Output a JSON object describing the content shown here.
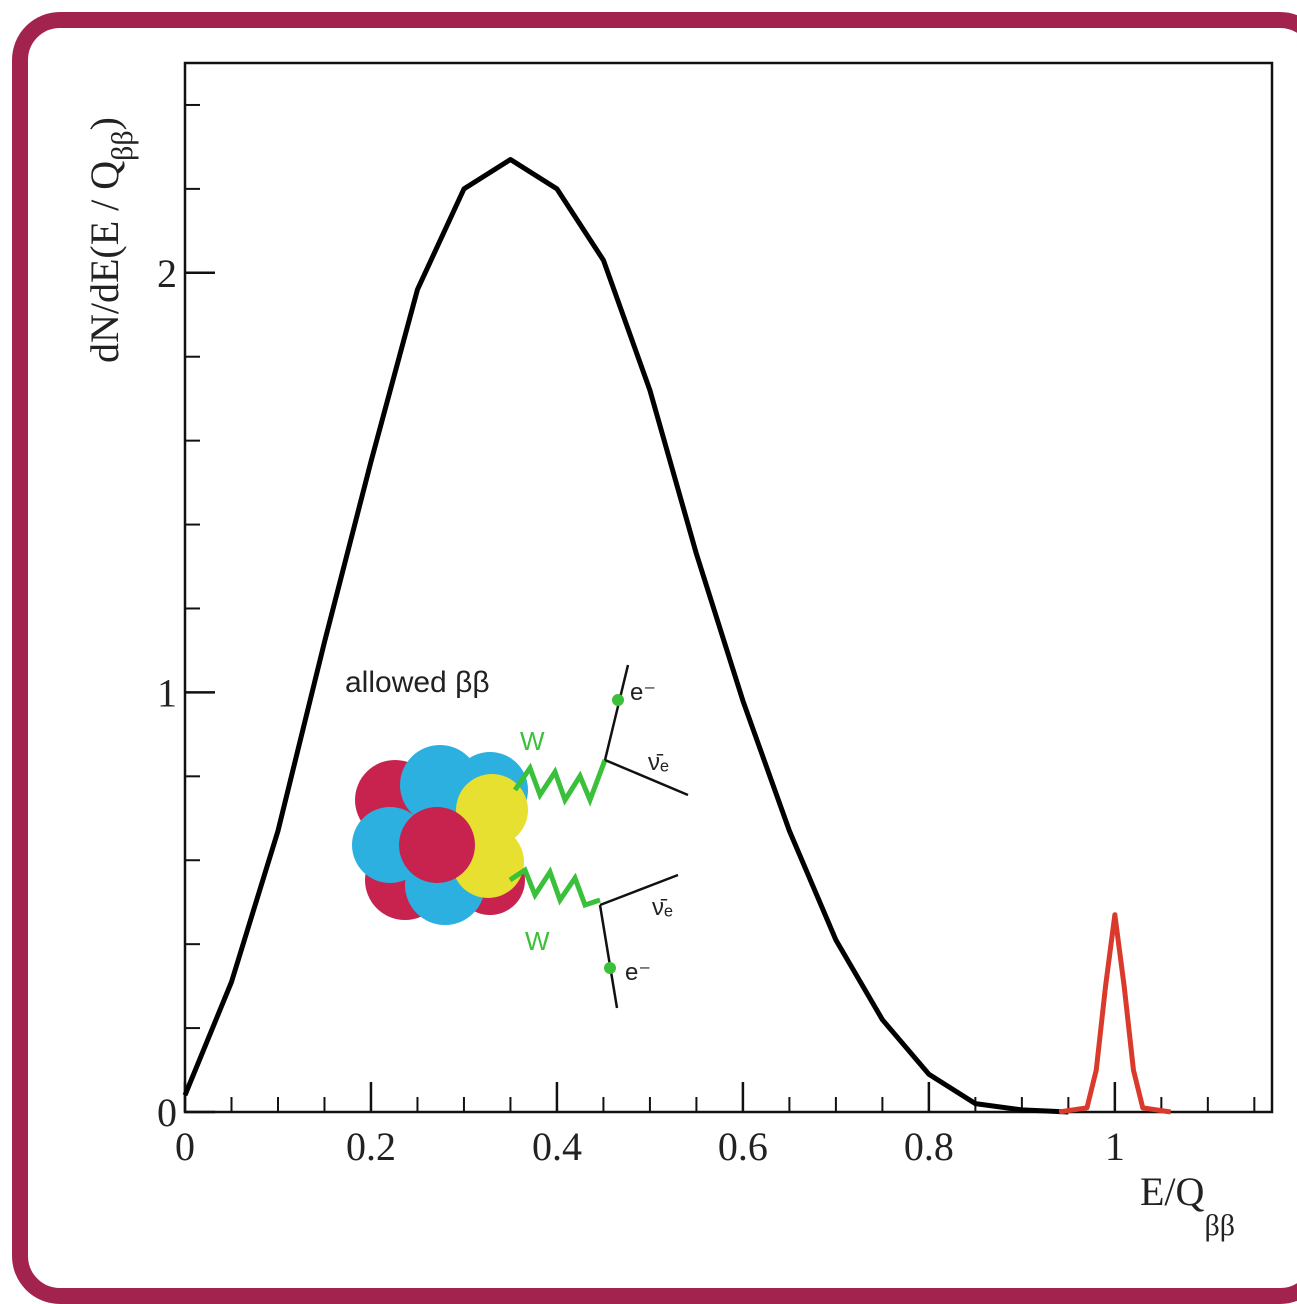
{
  "chart_data": {
    "type": "line",
    "ylabel": [
      "dN/dE(E / Q",
      "ββ",
      ")"
    ],
    "xlabel": [
      "E/Q",
      "ββ"
    ],
    "xlim": [
      0,
      1.169
    ],
    "ylim": [
      0,
      2.5
    ],
    "xticks": [
      0,
      0.2,
      0.4,
      0.6,
      0.8,
      1
    ],
    "xminorticks": [
      0.05,
      0.1,
      0.15,
      0.25,
      0.3,
      0.35,
      0.45,
      0.5,
      0.55,
      0.65,
      0.7,
      0.75,
      0.85,
      0.9,
      0.95,
      1.05,
      1.1,
      1.15
    ],
    "yticks": [
      0,
      1,
      2
    ],
    "yminorticks": [
      0.2,
      0.4,
      0.6,
      0.8,
      1.2,
      1.4,
      1.6,
      1.8,
      2.2,
      2.4
    ],
    "series": [
      {
        "color": "#000000",
        "x": [
          0,
          0.05,
          0.1,
          0.15,
          0.2,
          0.25,
          0.3,
          0.35,
          0.4,
          0.45,
          0.5,
          0.55,
          0.6,
          0.65,
          0.7,
          0.75,
          0.8,
          0.85,
          0.9,
          0.95
        ],
        "values": [
          0.04,
          0.31,
          0.67,
          1.12,
          1.55,
          1.96,
          2.2,
          2.27,
          2.2,
          2.03,
          1.72,
          1.33,
          0.98,
          0.67,
          0.41,
          0.22,
          0.09,
          0.02,
          0.005,
          0
        ]
      },
      {
        "color": "#d93a2b",
        "x": [
          0.94,
          0.97,
          0.98,
          0.99,
          1.0,
          1.01,
          1.02,
          1.03,
          1.06
        ],
        "values": [
          0,
          0.01,
          0.1,
          0.3,
          0.47,
          0.3,
          0.1,
          0.01,
          0
        ]
      }
    ]
  },
  "annotation": {
    "title": "allowed ββ",
    "boson": "W",
    "electron": "e⁻",
    "neutrino": "ν̄ₑ"
  }
}
